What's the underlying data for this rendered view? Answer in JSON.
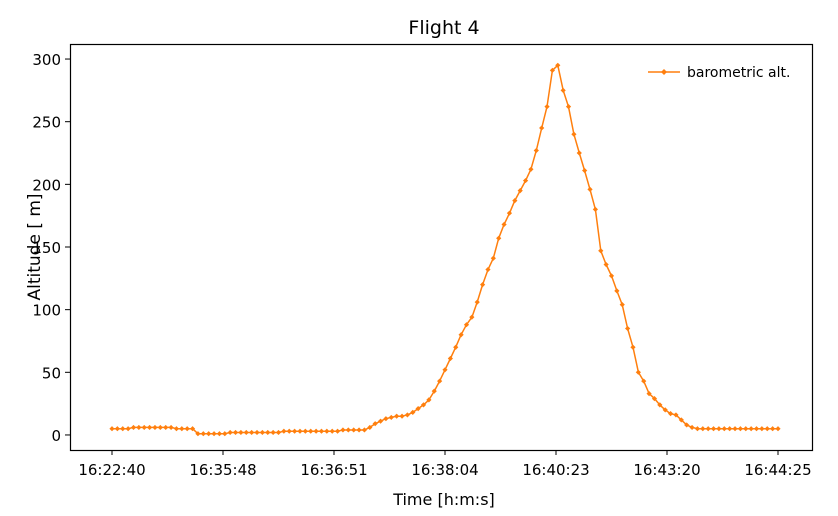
{
  "chart_data": {
    "type": "line",
    "title": "Flight 4",
    "xlabel": "Time [h:m:s]",
    "ylabel": "Altitude [ m]",
    "x_tick_labels": [
      "16:22:40",
      "16:35:48",
      "16:36:51",
      "16:38:04",
      "16:40:23",
      "16:43:20",
      "16:44:25"
    ],
    "y_ticks": [
      0,
      50,
      100,
      150,
      200,
      250,
      300
    ],
    "ylim": [
      -12,
      312
    ],
    "grid": false,
    "legend_position": "top-right",
    "series": [
      {
        "name": "barometric alt.",
        "color": "#ff7f0e",
        "marker": "diamond",
        "values": [
          5,
          5,
          5,
          5,
          6,
          6,
          6,
          6,
          6,
          6,
          6,
          6,
          5,
          5,
          5,
          5,
          1,
          1,
          1,
          1,
          1,
          1,
          2,
          2,
          2,
          2,
          2,
          2,
          2,
          2,
          2,
          2,
          3,
          3,
          3,
          3,
          3,
          3,
          3,
          3,
          3,
          3,
          3,
          4,
          4,
          4,
          4,
          4,
          6,
          9,
          11,
          13,
          14,
          15,
          15,
          16,
          18,
          21,
          24,
          28,
          35,
          43,
          52,
          61,
          70,
          80,
          88,
          94,
          106,
          120,
          132,
          141,
          157,
          168,
          177,
          187,
          195,
          203,
          212,
          227,
          245,
          262,
          291,
          295,
          275,
          262,
          240,
          225,
          211,
          196,
          180,
          147,
          136,
          127,
          115,
          104,
          85,
          70,
          50,
          43,
          33,
          29,
          24,
          20,
          17,
          16,
          12,
          8,
          6,
          5,
          5,
          5,
          5,
          5,
          5,
          5,
          5,
          5,
          5,
          5,
          5,
          5,
          5,
          5,
          5
        ]
      }
    ]
  }
}
